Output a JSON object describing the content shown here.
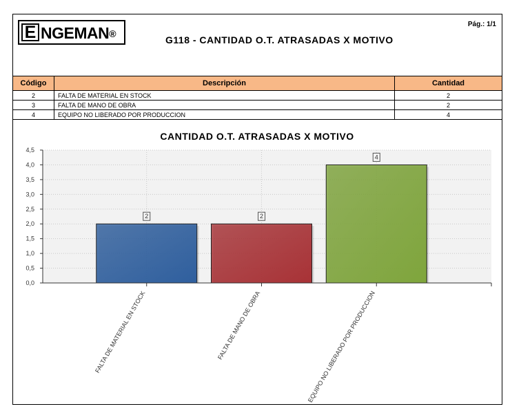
{
  "header": {
    "logo_text": "ENGEMAN",
    "page_label": "Pág.: 1/1",
    "report_title": "G118 - CANTIDAD O.T. ATRASADAS X MOTIVO"
  },
  "table": {
    "headers": [
      "Código",
      "Descripción",
      "Cantidad"
    ],
    "rows": [
      [
        "2",
        "FALTA DE MATERIAL EN STOCK",
        "2"
      ],
      [
        "3",
        "FALTA DE MANO DE OBRA",
        "2"
      ],
      [
        "4",
        "EQUIPO NO LIBERADO POR PRODUCCION",
        "4"
      ]
    ]
  },
  "colors": {
    "header_bg": "#f8b887",
    "plot_bg": "#f2f2f2"
  },
  "chart_data": {
    "type": "bar",
    "title": "CANTIDAD O.T. ATRASADAS X MOTIVO",
    "categories": [
      "FALTA DE MATERIAL EN STOCK",
      "FALTA DE MANO DE OBRA",
      "EQUIPO NO LIBERADO POR PRODUCCION"
    ],
    "values": [
      2,
      2,
      4
    ],
    "value_labels": [
      "2",
      "2",
      "4"
    ],
    "bar_colors": [
      "#2f5f9e",
      "#a83236",
      "#7fa53c"
    ],
    "ylim": [
      0,
      4.5
    ],
    "yticks": [
      0,
      0.5,
      1,
      1.5,
      2,
      2.5,
      3,
      3.5,
      4,
      4.5
    ],
    "ytick_labels": [
      "0,0",
      "0,5",
      "1,0",
      "1,5",
      "2,0",
      "2,5",
      "3,0",
      "3,5",
      "4,0",
      "4,5"
    ],
    "grid": true,
    "legend": "none"
  }
}
